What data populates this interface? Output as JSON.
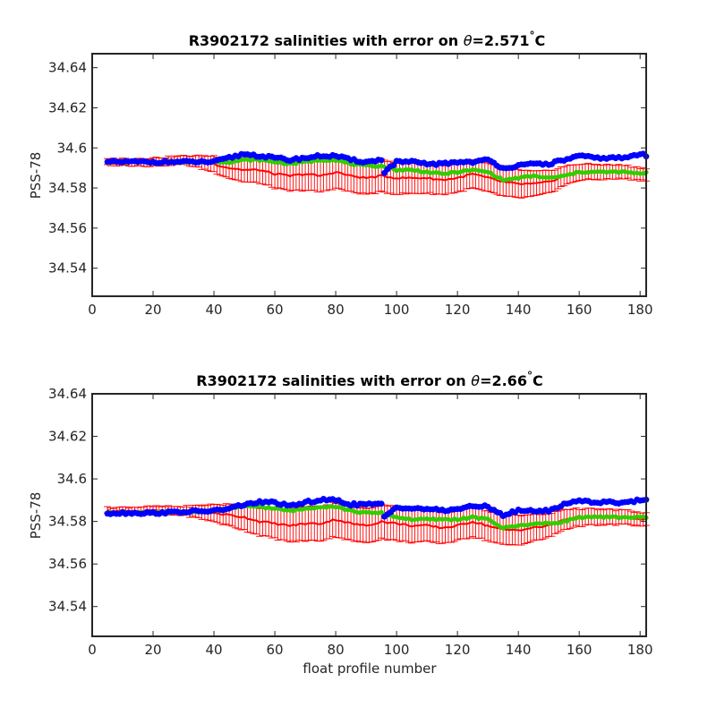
{
  "chart_data": [
    {
      "type": "scatter",
      "title_main": "R3902172 salinities with error on ",
      "title_theta": "θ",
      "title_value": "=2.571",
      "title_deg": "°",
      "title_unit": "C",
      "xlabel": "",
      "ylabel": "PSS-78",
      "xlim": [
        0,
        182
      ],
      "ylim": [
        34.526,
        34.647
      ],
      "xticks": [
        "0",
        "20",
        "40",
        "60",
        "80",
        "100",
        "120",
        "140",
        "160",
        "180"
      ],
      "yticks": [
        "34.54",
        "34.56",
        "34.58",
        "34.6",
        "34.62",
        "34.64"
      ],
      "grid": false,
      "colors": {
        "raw": "#0000ff",
        "adjusted": "#33cc00",
        "error": "#ff0000"
      },
      "series": [
        {
          "role": "raw",
          "x": [
            5,
            20,
            40,
            45,
            50,
            55,
            60,
            65,
            70,
            75,
            80,
            85,
            90,
            95,
            96,
            100,
            105,
            110,
            115,
            120,
            125,
            130,
            135,
            140,
            145,
            150,
            155,
            160,
            165,
            170,
            175,
            180,
            182
          ],
          "y": [
            34.593,
            34.593,
            34.593,
            34.595,
            34.597,
            34.596,
            34.595,
            34.594,
            34.595,
            34.596,
            34.596,
            34.594,
            34.593,
            34.594,
            34.588,
            34.593,
            34.593,
            34.592,
            34.592,
            34.593,
            34.593,
            34.594,
            34.59,
            34.591,
            34.592,
            34.592,
            34.594,
            34.596,
            34.595,
            34.595,
            34.595,
            34.597,
            34.596
          ]
        },
        {
          "role": "adjusted",
          "x": [
            5,
            20,
            40,
            45,
            50,
            55,
            60,
            65,
            70,
            75,
            80,
            85,
            90,
            95,
            100,
            105,
            110,
            115,
            120,
            125,
            130,
            135,
            140,
            145,
            150,
            155,
            160,
            165,
            170,
            175,
            180,
            182
          ],
          "y": [
            34.593,
            34.593,
            34.593,
            34.593,
            34.594,
            34.594,
            34.593,
            34.592,
            34.593,
            34.594,
            34.594,
            34.592,
            34.591,
            34.591,
            34.589,
            34.589,
            34.588,
            34.587,
            34.588,
            34.589,
            34.588,
            34.584,
            34.585,
            34.586,
            34.585,
            34.586,
            34.588,
            34.588,
            34.588,
            34.588,
            34.587,
            34.588
          ]
        },
        {
          "role": "error_center",
          "x": [
            5,
            20,
            30,
            40,
            45,
            50,
            55,
            60,
            65,
            70,
            75,
            80,
            85,
            90,
            95,
            100,
            105,
            110,
            115,
            120,
            125,
            130,
            135,
            140,
            145,
            150,
            155,
            160,
            165,
            170,
            175,
            180,
            182
          ],
          "y": [
            34.593,
            34.593,
            34.594,
            34.592,
            34.59,
            34.589,
            34.589,
            34.587,
            34.586,
            34.587,
            34.586,
            34.588,
            34.586,
            34.585,
            34.586,
            34.585,
            34.585,
            34.585,
            34.584,
            34.585,
            34.587,
            34.585,
            34.583,
            34.582,
            34.582,
            34.583,
            34.586,
            34.588,
            34.588,
            34.588,
            34.588,
            34.587,
            34.587
          ]
        },
        {
          "role": "error_halfwidth",
          "x": [
            5,
            20,
            30,
            40,
            50,
            60,
            70,
            80,
            90,
            100,
            120,
            140,
            160,
            182
          ],
          "y": [
            0.0015,
            0.002,
            0.002,
            0.004,
            0.006,
            0.007,
            0.008,
            0.008,
            0.008,
            0.008,
            0.007,
            0.007,
            0.004,
            0.003
          ]
        }
      ]
    },
    {
      "type": "scatter",
      "title_main": "R3902172 salinities with error on ",
      "title_theta": "θ",
      "title_value": "=2.66",
      "title_deg": "°",
      "title_unit": "C",
      "xlabel": "float profile number",
      "ylabel": "PSS-78",
      "xlim": [
        0,
        182
      ],
      "ylim": [
        34.526,
        34.64
      ],
      "xticks": [
        "0",
        "20",
        "40",
        "60",
        "80",
        "100",
        "120",
        "140",
        "160",
        "180"
      ],
      "yticks": [
        "34.54",
        "34.56",
        "34.58",
        "34.6",
        "34.62",
        "34.64"
      ],
      "grid": false,
      "colors": {
        "raw": "#0000ff",
        "adjusted": "#33cc00",
        "error": "#ff0000"
      },
      "series": [
        {
          "role": "raw",
          "x": [
            5,
            20,
            40,
            45,
            50,
            55,
            60,
            65,
            70,
            75,
            80,
            85,
            90,
            95,
            96,
            100,
            105,
            110,
            115,
            120,
            125,
            130,
            135,
            140,
            145,
            150,
            155,
            160,
            165,
            170,
            175,
            180,
            182
          ],
          "y": [
            34.584,
            34.584,
            34.585,
            34.586,
            34.588,
            34.589,
            34.589,
            34.587,
            34.589,
            34.59,
            34.59,
            34.588,
            34.588,
            34.588,
            34.582,
            34.587,
            34.586,
            34.586,
            34.585,
            34.586,
            34.587,
            34.587,
            34.583,
            34.585,
            34.585,
            34.585,
            34.588,
            34.59,
            34.589,
            34.589,
            34.589,
            34.59,
            34.59
          ]
        },
        {
          "role": "adjusted",
          "x": [
            5,
            20,
            40,
            45,
            50,
            55,
            60,
            65,
            70,
            75,
            80,
            85,
            90,
            95,
            100,
            105,
            110,
            115,
            120,
            125,
            130,
            135,
            140,
            145,
            150,
            155,
            160,
            165,
            170,
            175,
            180,
            182
          ],
          "y": [
            34.584,
            34.584,
            34.585,
            34.586,
            34.587,
            34.587,
            34.586,
            34.585,
            34.586,
            34.587,
            34.587,
            34.585,
            34.584,
            34.584,
            34.582,
            34.581,
            34.581,
            34.581,
            34.581,
            34.582,
            34.581,
            34.577,
            34.578,
            34.579,
            34.579,
            34.58,
            34.582,
            34.582,
            34.582,
            34.582,
            34.582,
            34.582
          ]
        },
        {
          "role": "error_center",
          "x": [
            5,
            20,
            30,
            40,
            45,
            50,
            55,
            60,
            65,
            70,
            75,
            80,
            85,
            90,
            95,
            100,
            105,
            110,
            115,
            120,
            125,
            130,
            135,
            140,
            145,
            150,
            155,
            160,
            165,
            170,
            175,
            180,
            182
          ],
          "y": [
            34.585,
            34.585,
            34.585,
            34.584,
            34.583,
            34.582,
            34.58,
            34.579,
            34.578,
            34.579,
            34.579,
            34.581,
            34.579,
            34.578,
            34.58,
            34.579,
            34.578,
            34.578,
            34.577,
            34.578,
            34.58,
            34.578,
            34.576,
            34.576,
            34.577,
            34.578,
            34.581,
            34.582,
            34.582,
            34.582,
            34.582,
            34.581,
            34.581
          ]
        },
        {
          "role": "error_halfwidth",
          "x": [
            5,
            20,
            30,
            40,
            50,
            60,
            70,
            80,
            90,
            100,
            120,
            140,
            160,
            182
          ],
          "y": [
            0.0015,
            0.002,
            0.002,
            0.004,
            0.006,
            0.007,
            0.008,
            0.008,
            0.008,
            0.008,
            0.007,
            0.007,
            0.004,
            0.003
          ]
        }
      ]
    }
  ]
}
